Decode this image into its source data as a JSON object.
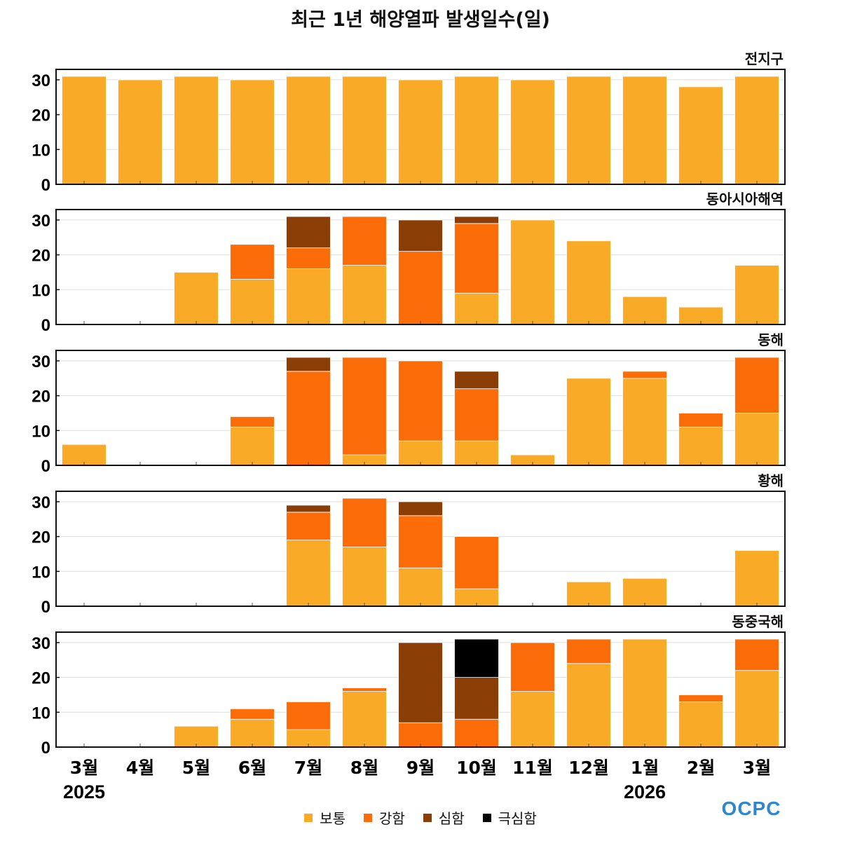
{
  "chart_data": {
    "type": "bar",
    "stacked": true,
    "title": "최근 1년 해양열파 발생일수(일)",
    "months": [
      "3월",
      "4월",
      "5월",
      "6월",
      "7월",
      "8월",
      "9월",
      "10월",
      "11월",
      "12월",
      "1월",
      "2월",
      "3월"
    ],
    "year_labels": [
      {
        "category_index": 0,
        "text": "2025"
      },
      {
        "category_index": 10,
        "text": "2026"
      }
    ],
    "ylim": [
      0,
      33
    ],
    "yticks": [
      0,
      10,
      20,
      30
    ],
    "legend": [
      {
        "name": "보통",
        "color": "#F9AA26"
      },
      {
        "name": "강함",
        "color": "#FC6C08"
      },
      {
        "name": "심함",
        "color": "#8A3E05"
      },
      {
        "name": "극심함",
        "color": "#000000"
      }
    ],
    "panels": [
      {
        "label": "전지구",
        "series": [
          {
            "name": "보통",
            "values": [
              31,
              30,
              31,
              30,
              31,
              31,
              30,
              31,
              30,
              31,
              31,
              28,
              31
            ]
          },
          {
            "name": "강함",
            "values": [
              0,
              0,
              0,
              0,
              0,
              0,
              0,
              0,
              0,
              0,
              0,
              0,
              0
            ]
          },
          {
            "name": "심함",
            "values": [
              0,
              0,
              0,
              0,
              0,
              0,
              0,
              0,
              0,
              0,
              0,
              0,
              0
            ]
          },
          {
            "name": "극심함",
            "values": [
              0,
              0,
              0,
              0,
              0,
              0,
              0,
              0,
              0,
              0,
              0,
              0,
              0
            ]
          }
        ]
      },
      {
        "label": "동아시아해역",
        "series": [
          {
            "name": "보통",
            "values": [
              0,
              0,
              15,
              13,
              16,
              17,
              0,
              9,
              30,
              24,
              8,
              5,
              17
            ]
          },
          {
            "name": "강함",
            "values": [
              0,
              0,
              0,
              10,
              6,
              14,
              21,
              20,
              0,
              0,
              0,
              0,
              0
            ]
          },
          {
            "name": "심함",
            "values": [
              0,
              0,
              0,
              0,
              9,
              0,
              9,
              2,
              0,
              0,
              0,
              0,
              0
            ]
          },
          {
            "name": "극심함",
            "values": [
              0,
              0,
              0,
              0,
              0,
              0,
              0,
              0,
              0,
              0,
              0,
              0,
              0
            ]
          }
        ]
      },
      {
        "label": "동해",
        "series": [
          {
            "name": "보통",
            "values": [
              6,
              0,
              0,
              11,
              0,
              3,
              7,
              7,
              3,
              25,
              25,
              11,
              15
            ]
          },
          {
            "name": "강함",
            "values": [
              0,
              0,
              0,
              3,
              27,
              28,
              23,
              15,
              0,
              0,
              2,
              4,
              16
            ]
          },
          {
            "name": "심함",
            "values": [
              0,
              0,
              0,
              0,
              4,
              0,
              0,
              5,
              0,
              0,
              0,
              0,
              0
            ]
          },
          {
            "name": "극심함",
            "values": [
              0,
              0,
              0,
              0,
              0,
              0,
              0,
              0,
              0,
              0,
              0,
              0,
              0
            ]
          }
        ]
      },
      {
        "label": "황해",
        "series": [
          {
            "name": "보통",
            "values": [
              0,
              0,
              0,
              0,
              19,
              17,
              11,
              5,
              0,
              7,
              8,
              0,
              16
            ]
          },
          {
            "name": "강함",
            "values": [
              0,
              0,
              0,
              0,
              8,
              14,
              15,
              15,
              0,
              0,
              0,
              0,
              0
            ]
          },
          {
            "name": "심함",
            "values": [
              0,
              0,
              0,
              0,
              2,
              0,
              4,
              0,
              0,
              0,
              0,
              0,
              0
            ]
          },
          {
            "name": "극심함",
            "values": [
              0,
              0,
              0,
              0,
              0,
              0,
              0,
              0,
              0,
              0,
              0,
              0,
              0
            ]
          }
        ]
      },
      {
        "label": "동중국해",
        "series": [
          {
            "name": "보통",
            "values": [
              0,
              0,
              6,
              8,
              5,
              16,
              0,
              0,
              16,
              24,
              31,
              13,
              22
            ]
          },
          {
            "name": "강함",
            "values": [
              0,
              0,
              0,
              3,
              8,
              1,
              7,
              8,
              14,
              7,
              0,
              2,
              9
            ]
          },
          {
            "name": "심함",
            "values": [
              0,
              0,
              0,
              0,
              0,
              0,
              23,
              12,
              0,
              0,
              0,
              0,
              0
            ]
          },
          {
            "name": "극심함",
            "values": [
              0,
              0,
              0,
              0,
              0,
              0,
              0,
              11,
              0,
              0,
              0,
              0,
              0
            ]
          }
        ]
      }
    ]
  },
  "logo": {
    "text": "OCPC",
    "color": "#2E86D1"
  }
}
